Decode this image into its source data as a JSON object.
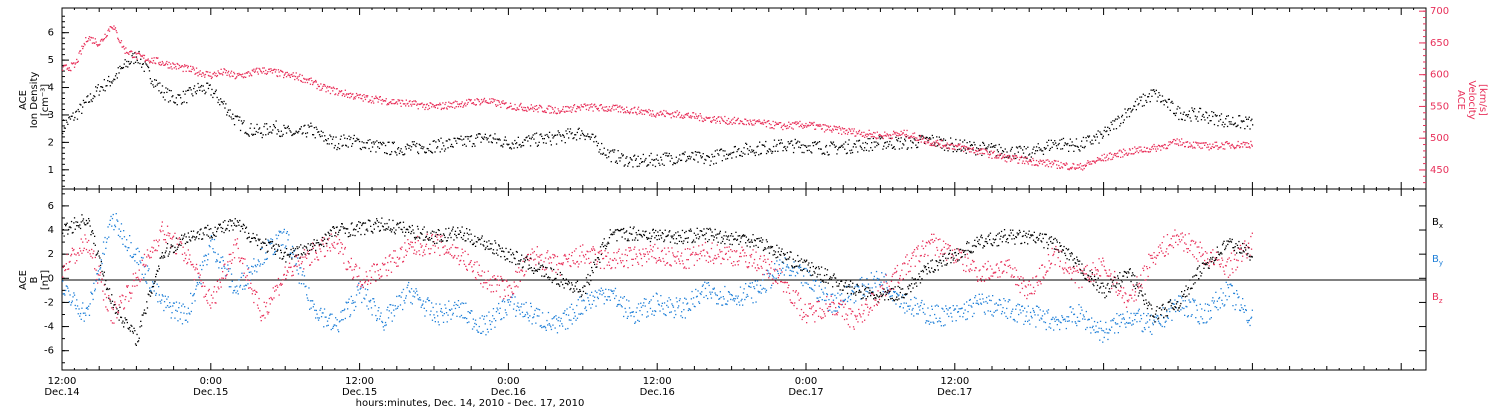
{
  "chart_data": [
    {
      "type": "scatter",
      "panel": "plasma",
      "ylabel_left": [
        "ACE",
        "Ion Density"
      ],
      "ylabel_left_unit": "[cm⁻³]",
      "ylabel_right": [
        "ACE",
        "Velocity"
      ],
      "ylabel_right_unit": "[km/s]",
      "ylim_left": [
        0.3,
        6.9
      ],
      "ylim_right": [
        420,
        705
      ],
      "yticks_left": [
        "1",
        "2",
        "3",
        "4",
        "5",
        "6"
      ],
      "yticks_right": [
        "450",
        "500",
        "550",
        "600",
        "650",
        "700"
      ],
      "colors": {
        "density": "#000000",
        "velocity": "#e8305a"
      },
      "series": [
        {
          "name": "",
          "key": "density",
          "axis": "left",
          "x_hours": [
            0,
            1,
            2,
            3,
            4,
            5,
            6,
            7,
            8,
            9,
            10,
            11,
            12,
            13,
            14,
            15,
            16,
            17,
            18,
            19,
            20,
            21,
            22,
            23,
            24,
            26,
            28,
            30,
            32,
            34,
            36,
            38,
            40,
            42,
            44,
            46,
            48,
            50,
            52,
            54,
            56,
            58,
            60,
            62,
            64,
            66,
            68,
            70,
            72,
            74,
            76,
            78,
            80,
            82,
            84,
            86,
            88,
            90,
            92,
            94,
            96
          ],
          "values": [
            2.6,
            3.0,
            3.5,
            4.0,
            4.3,
            4.8,
            5.2,
            4.5,
            3.9,
            3.6,
            3.7,
            4.0,
            3.9,
            3.4,
            2.8,
            2.5,
            2.4,
            2.6,
            2.4,
            2.3,
            2.5,
            2.2,
            2.0,
            2.1,
            2.0,
            1.8,
            1.8,
            1.9,
            2.0,
            2.2,
            2.0,
            2.1,
            2.2,
            2.4,
            1.6,
            1.3,
            1.4,
            1.5,
            1.4,
            1.7,
            1.8,
            1.9,
            1.9,
            1.8,
            1.9,
            2.0,
            2.0,
            2.1,
            1.9,
            1.8,
            1.7,
            1.6,
            2.0,
            1.9,
            2.3,
            3.2,
            3.8,
            3.1,
            3.0,
            2.8,
            2.7
          ]
        },
        {
          "name": "",
          "key": "velocity",
          "axis": "right",
          "x_hours": [
            0,
            1,
            2,
            3,
            4,
            5,
            6,
            7,
            8,
            9,
            10,
            11,
            12,
            13,
            14,
            15,
            16,
            17,
            18,
            19,
            20,
            21,
            22,
            23,
            24,
            26,
            28,
            30,
            32,
            34,
            36,
            38,
            40,
            42,
            44,
            46,
            48,
            50,
            52,
            54,
            56,
            58,
            60,
            62,
            64,
            66,
            68,
            70,
            72,
            74,
            76,
            78,
            80,
            82,
            84,
            86,
            88,
            90,
            92,
            94,
            96
          ],
          "values": [
            610,
            615,
            660,
            650,
            680,
            640,
            630,
            625,
            620,
            615,
            610,
            605,
            600,
            605,
            598,
            602,
            608,
            605,
            600,
            598,
            590,
            580,
            575,
            570,
            565,
            560,
            555,
            550,
            555,
            560,
            552,
            548,
            545,
            550,
            548,
            545,
            540,
            538,
            532,
            528,
            525,
            520,
            522,
            515,
            510,
            505,
            508,
            495,
            488,
            480,
            470,
            465,
            460,
            455,
            470,
            480,
            485,
            495,
            488,
            490,
            492
          ]
        }
      ]
    },
    {
      "type": "scatter",
      "panel": "magnetic",
      "ylabel_left": [
        "ACE",
        "B"
      ],
      "ylabel_left_unit": "[nT]",
      "ylim": [
        -7.6,
        7.4
      ],
      "yticks": [
        "-6",
        "-4",
        "-2",
        "0",
        "2",
        "4",
        "6"
      ],
      "legend_placement": "right",
      "colors": {
        "Bx": "#000000",
        "By": "#1e7fd8",
        "Bz": "#e8305a"
      },
      "series": [
        {
          "name": "B",
          "sub": "x",
          "key": "Bx",
          "x_hours": [
            0,
            2,
            4,
            6,
            8,
            10,
            12,
            14,
            16,
            18,
            20,
            22,
            24,
            26,
            28,
            30,
            32,
            34,
            36,
            38,
            40,
            42,
            44,
            46,
            48,
            50,
            52,
            54,
            56,
            58,
            60,
            62,
            64,
            66,
            68,
            70,
            72,
            74,
            76,
            78,
            80,
            82,
            84,
            86,
            88,
            90,
            92,
            94,
            96
          ],
          "values": [
            4.0,
            5.0,
            -2.0,
            -5.0,
            2.0,
            3.5,
            4.0,
            4.5,
            3.0,
            2.0,
            2.5,
            4.0,
            4.2,
            4.5,
            4.0,
            3.5,
            3.8,
            3.0,
            2.0,
            1.0,
            0.0,
            -1.0,
            3.5,
            3.8,
            3.6,
            3.5,
            3.7,
            3.4,
            3.2,
            2.0,
            1.0,
            0.0,
            -1.0,
            -1.5,
            -1.0,
            1.0,
            2.0,
            3.0,
            3.5,
            3.4,
            3.0,
            1.0,
            -1.0,
            0.5,
            -3.0,
            -2.0,
            1.0,
            3.0,
            2.0
          ]
        },
        {
          "name": "B",
          "sub": "y",
          "key": "By",
          "x_hours": [
            0,
            2,
            4,
            6,
            8,
            10,
            12,
            14,
            16,
            18,
            20,
            22,
            24,
            26,
            28,
            30,
            32,
            34,
            36,
            38,
            40,
            42,
            44,
            46,
            48,
            50,
            52,
            54,
            56,
            58,
            60,
            62,
            64,
            66,
            68,
            70,
            72,
            74,
            76,
            78,
            80,
            82,
            84,
            86,
            88,
            90,
            92,
            94,
            96
          ],
          "values": [
            -1.0,
            -3.0,
            5.0,
            2.0,
            -2.0,
            -3.0,
            3.0,
            -1.0,
            2.0,
            3.5,
            -2.0,
            -4.0,
            -1.0,
            -3.5,
            -1.0,
            -3.0,
            -2.5,
            -4.0,
            -2.0,
            -3.0,
            -4.0,
            -2.0,
            -1.0,
            -3.0,
            -2.0,
            -2.5,
            -1.0,
            -1.5,
            -1.0,
            1.0,
            0.0,
            -2.0,
            -1.0,
            0.0,
            -2.0,
            -3.0,
            -3.0,
            -2.0,
            -2.5,
            -3.0,
            -3.5,
            -3.0,
            -4.5,
            -3.0,
            -4.0,
            -2.0,
            -3.0,
            -1.0,
            -3.5
          ]
        },
        {
          "name": "B",
          "sub": "z",
          "key": "Bz",
          "x_hours": [
            0,
            2,
            4,
            6,
            8,
            10,
            12,
            14,
            16,
            18,
            20,
            22,
            24,
            26,
            28,
            30,
            32,
            34,
            36,
            38,
            40,
            42,
            44,
            46,
            48,
            50,
            52,
            54,
            56,
            58,
            60,
            62,
            64,
            66,
            68,
            70,
            72,
            74,
            76,
            78,
            80,
            82,
            84,
            86,
            88,
            90,
            92,
            94,
            96
          ],
          "values": [
            1.0,
            3.0,
            -3.0,
            0.0,
            4.0,
            2.0,
            -2.0,
            3.0,
            -3.0,
            0.5,
            2.0,
            3.0,
            0.0,
            1.0,
            2.5,
            3.0,
            2.0,
            0.0,
            -1.0,
            2.0,
            1.0,
            2.0,
            1.5,
            1.8,
            2.0,
            1.5,
            2.2,
            2.0,
            1.5,
            0.0,
            -3.0,
            -2.0,
            -3.5,
            -1.0,
            1.0,
            3.0,
            2.0,
            0.5,
            1.0,
            -1.0,
            2.0,
            0.0,
            1.0,
            -2.0,
            2.0,
            3.5,
            2.0,
            1.0,
            3.0
          ]
        }
      ]
    }
  ],
  "x_axis": {
    "label": "hours:minutes, Dec. 14, 2010 - Dec. 17, 2010",
    "range_hours": [
      0,
      110
    ],
    "ticks": [
      {
        "hour": 0,
        "time": "12:00",
        "date": "Dec.14"
      },
      {
        "hour": 12,
        "time": "0:00",
        "date": "Dec.15"
      },
      {
        "hour": 24,
        "time": "12:00",
        "date": "Dec.15"
      },
      {
        "hour": 36,
        "time": "0:00",
        "date": "Dec.16"
      },
      {
        "hour": 48,
        "time": "12:00",
        "date": "Dec.16"
      },
      {
        "hour": 60,
        "time": "0:00",
        "date": "Dec.17"
      },
      {
        "hour": 72,
        "time": "12:00",
        "date": "Dec.17"
      }
    ]
  }
}
